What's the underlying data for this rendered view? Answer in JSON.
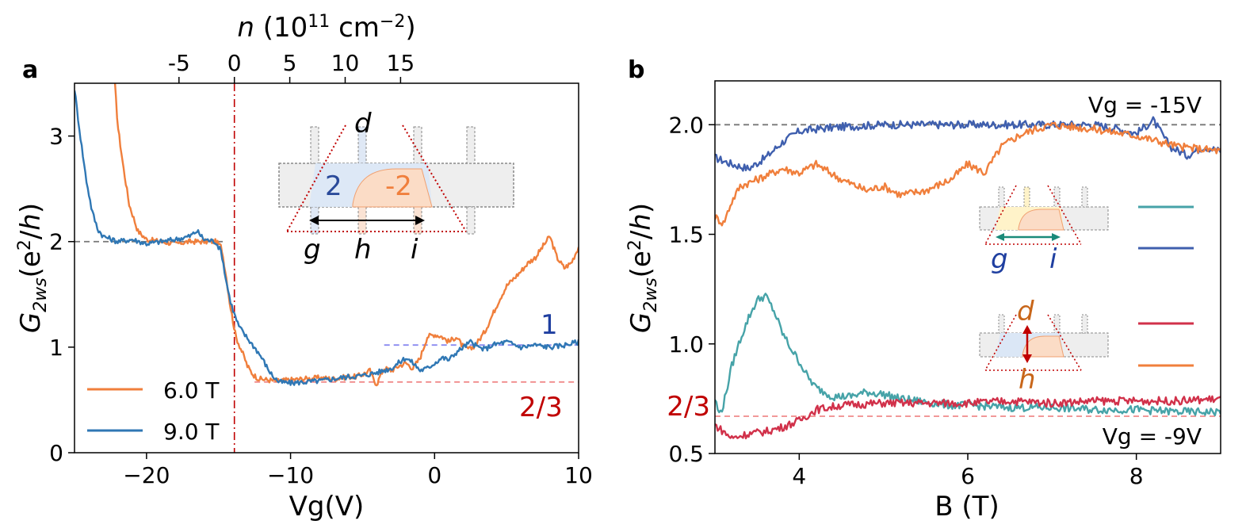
{
  "chart_data": [
    {
      "panel": "a",
      "type": "line",
      "xlabel": "Vg(V)",
      "ylabel": "G_2ws(e^2/h)",
      "top_xlabel": "n (10^11 cm^-2)",
      "xlim": [
        -25,
        10
      ],
      "ylim": [
        0,
        3.5
      ],
      "xticks": [
        -20,
        -10,
        0,
        10
      ],
      "xtick_labels": [
        "−20",
        "−10",
        "0",
        "10"
      ],
      "yticks": [
        0,
        1,
        2,
        3
      ],
      "ytick_labels": [
        "0",
        "1",
        "2",
        "3"
      ],
      "top_ticks_n": [
        -5,
        0,
        5,
        10,
        15
      ],
      "top_tick_labels": [
        "-5",
        "0",
        "5",
        "10",
        "15"
      ],
      "n_per_V": 1.3,
      "n_offset_V": -13.9,
      "legend": {
        "placement": "lower-left",
        "entries": [
          "6.0 T",
          "9.0 T"
        ]
      },
      "annotations": {
        "level_1": "1",
        "level_23": "2/3",
        "region_left": "2",
        "region_right": "-2",
        "contacts": [
          "d",
          "g",
          "h",
          "i"
        ]
      },
      "reference_lines": [
        {
          "y": 2.0,
          "from_x": -25,
          "to_x": -14.5,
          "color": "#777777"
        },
        {
          "y": 1.02,
          "from_x": -3.5,
          "to_x": 10,
          "color": "#8a8af0"
        },
        {
          "y": 0.67,
          "from_x": -12.5,
          "to_x": 10,
          "color": "#f08a8a"
        }
      ],
      "vertical_line": {
        "x": -13.9,
        "color": "#c00000"
      },
      "series": [
        {
          "name": "6.0 T",
          "color": "#f07f3c",
          "points": [
            [
              -22.2,
              3.5
            ],
            [
              -22,
              3.1
            ],
            [
              -21.6,
              2.7
            ],
            [
              -21.2,
              2.35
            ],
            [
              -20.6,
              2.1
            ],
            [
              -20,
              2.02
            ],
            [
              -19,
              2.0
            ],
            [
              -18,
              1.98
            ],
            [
              -17,
              2.0
            ],
            [
              -16,
              2.0
            ],
            [
              -15.2,
              2.0
            ],
            [
              -14.8,
              1.95
            ],
            [
              -14.5,
              1.7
            ],
            [
              -14.2,
              1.4
            ],
            [
              -14,
              1.25
            ],
            [
              -13.8,
              1.1
            ],
            [
              -13.5,
              1.0
            ],
            [
              -13.2,
              0.9
            ],
            [
              -13,
              0.82
            ],
            [
              -12.6,
              0.74
            ],
            [
              -12.2,
              0.7
            ],
            [
              -11.6,
              0.69
            ],
            [
              -11,
              0.68
            ],
            [
              -10,
              0.69
            ],
            [
              -9,
              0.7
            ],
            [
              -8,
              0.71
            ],
            [
              -7,
              0.7
            ],
            [
              -6,
              0.72
            ],
            [
              -5.5,
              0.72
            ],
            [
              -5,
              0.74
            ],
            [
              -4.5,
              0.78
            ],
            [
              -4.2,
              0.68
            ],
            [
              -4,
              0.65
            ],
            [
              -3.8,
              0.72
            ],
            [
              -3.5,
              0.8
            ],
            [
              -3,
              0.78
            ],
            [
              -2.5,
              0.82
            ],
            [
              -2,
              0.85
            ],
            [
              -1.5,
              0.8
            ],
            [
              -1,
              0.9
            ],
            [
              -0.5,
              1.1
            ],
            [
              0,
              1.12
            ],
            [
              0.5,
              1.1
            ],
            [
              1,
              1.05
            ],
            [
              1.5,
              1.1
            ],
            [
              2,
              1.0
            ],
            [
              2.5,
              0.98
            ],
            [
              3,
              1.05
            ],
            [
              3.5,
              1.15
            ],
            [
              4,
              1.3
            ],
            [
              4.5,
              1.45
            ],
            [
              5,
              1.58
            ],
            [
              5.5,
              1.65
            ],
            [
              6,
              1.72
            ],
            [
              6.5,
              1.8
            ],
            [
              7,
              1.85
            ],
            [
              7.5,
              1.95
            ],
            [
              8,
              2.05
            ],
            [
              8.5,
              1.85
            ],
            [
              9,
              1.75
            ],
            [
              9.5,
              1.8
            ],
            [
              10,
              1.95
            ]
          ]
        },
        {
          "name": "9.0 T",
          "color": "#2f77b4",
          "points": [
            [
              -25,
              3.45
            ],
            [
              -24.6,
              3.0
            ],
            [
              -24.2,
              2.6
            ],
            [
              -23.8,
              2.3
            ],
            [
              -23.4,
              2.12
            ],
            [
              -23,
              2.05
            ],
            [
              -22,
              2.0
            ],
            [
              -21,
              2.02
            ],
            [
              -20,
              1.98
            ],
            [
              -19,
              2.0
            ],
            [
              -18,
              2.02
            ],
            [
              -17,
              2.05
            ],
            [
              -16.5,
              2.1
            ],
            [
              -16,
              2.02
            ],
            [
              -15.2,
              2.0
            ],
            [
              -14.8,
              1.9
            ],
            [
              -14.5,
              1.65
            ],
            [
              -14.2,
              1.45
            ],
            [
              -14,
              1.35
            ],
            [
              -13.6,
              1.2
            ],
            [
              -13.2,
              1.12
            ],
            [
              -12.8,
              1.05
            ],
            [
              -12.4,
              0.98
            ],
            [
              -12,
              0.9
            ],
            [
              -11.6,
              0.8
            ],
            [
              -11.2,
              0.72
            ],
            [
              -10.8,
              0.67
            ],
            [
              -10,
              0.66
            ],
            [
              -9,
              0.67
            ],
            [
              -8,
              0.68
            ],
            [
              -7,
              0.7
            ],
            [
              -6,
              0.72
            ],
            [
              -5,
              0.73
            ],
            [
              -4,
              0.76
            ],
            [
              -3,
              0.8
            ],
            [
              -2.5,
              0.85
            ],
            [
              -2,
              0.9
            ],
            [
              -1.5,
              0.85
            ],
            [
              -1,
              0.78
            ],
            [
              -0.5,
              0.8
            ],
            [
              0,
              0.85
            ],
            [
              0.5,
              0.9
            ],
            [
              1,
              0.88
            ],
            [
              1.5,
              0.95
            ],
            [
              2,
              1.0
            ],
            [
              2.5,
              1.05
            ],
            [
              3,
              1.0
            ],
            [
              3.5,
              0.98
            ],
            [
              4,
              1.02
            ],
            [
              5,
              1.05
            ],
            [
              6,
              1.0
            ],
            [
              7,
              1.02
            ],
            [
              8,
              1.0
            ],
            [
              9,
              1.02
            ],
            [
              10,
              1.05
            ]
          ]
        }
      ]
    },
    {
      "panel": "b",
      "type": "line",
      "xlabel": "B (T)",
      "ylabel": "G_2ws(e^2/h)",
      "xlim": [
        3,
        9
      ],
      "ylim": [
        0.5,
        2.2
      ],
      "xticks": [
        4,
        6,
        8
      ],
      "xtick_labels": [
        "4",
        "6",
        "8"
      ],
      "yticks": [
        0.5,
        1.0,
        1.5,
        2.0
      ],
      "ytick_labels": [
        "0.5",
        "1.0",
        "1.5",
        "2.0"
      ],
      "annotations": {
        "vg_top": "Vg = -15V",
        "vg_bottom": "Vg = -9V",
        "level_23": "2/3",
        "contacts_top": [
          "g",
          "i"
        ],
        "contacts_bottom": [
          "d",
          "h"
        ]
      },
      "reference_lines": [
        {
          "y": 2.0,
          "color": "#777777"
        },
        {
          "y": 0.67,
          "color": "#f08a8a"
        }
      ],
      "series": [
        {
          "color": "#3f5fae",
          "points": [
            [
              3,
              1.85
            ],
            [
              3.2,
              1.82
            ],
            [
              3.4,
              1.8
            ],
            [
              3.6,
              1.85
            ],
            [
              3.8,
              1.92
            ],
            [
              4,
              1.97
            ],
            [
              4.2,
              1.98
            ],
            [
              4.5,
              1.99
            ],
            [
              5,
              2.0
            ],
            [
              5.5,
              2.0
            ],
            [
              6,
              2.0
            ],
            [
              6.5,
              2.0
            ],
            [
              7,
              2.0
            ],
            [
              7.5,
              2.0
            ],
            [
              7.8,
              1.98
            ],
            [
              8,
              1.96
            ],
            [
              8.2,
              2.02
            ],
            [
              8.4,
              1.9
            ],
            [
              8.6,
              1.86
            ],
            [
              8.8,
              1.9
            ],
            [
              9,
              1.88
            ]
          ]
        },
        {
          "color": "#f07f3c",
          "points": [
            [
              3,
              1.58
            ],
            [
              3.1,
              1.55
            ],
            [
              3.2,
              1.65
            ],
            [
              3.3,
              1.72
            ],
            [
              3.5,
              1.75
            ],
            [
              3.8,
              1.8
            ],
            [
              4,
              1.78
            ],
            [
              4.2,
              1.82
            ],
            [
              4.5,
              1.75
            ],
            [
              4.8,
              1.7
            ],
            [
              5,
              1.72
            ],
            [
              5.2,
              1.68
            ],
            [
              5.5,
              1.7
            ],
            [
              5.8,
              1.75
            ],
            [
              6,
              1.82
            ],
            [
              6.2,
              1.78
            ],
            [
              6.4,
              1.9
            ],
            [
              6.6,
              1.95
            ],
            [
              6.8,
              1.98
            ],
            [
              7,
              2.0
            ],
            [
              7.5,
              1.98
            ],
            [
              8,
              1.95
            ],
            [
              8.5,
              1.9
            ],
            [
              9,
              1.88
            ]
          ]
        },
        {
          "color": "#46a3a8",
          "points": [
            [
              3,
              0.75
            ],
            [
              3.05,
              0.68
            ],
            [
              3.1,
              0.72
            ],
            [
              3.2,
              0.9
            ],
            [
              3.3,
              1.02
            ],
            [
              3.4,
              1.12
            ],
            [
              3.5,
              1.2
            ],
            [
              3.6,
              1.22
            ],
            [
              3.7,
              1.15
            ],
            [
              3.8,
              1.05
            ],
            [
              3.9,
              0.98
            ],
            [
              4,
              0.92
            ],
            [
              4.1,
              0.85
            ],
            [
              4.2,
              0.8
            ],
            [
              4.4,
              0.76
            ],
            [
              4.6,
              0.76
            ],
            [
              4.8,
              0.78
            ],
            [
              5,
              0.77
            ],
            [
              5.2,
              0.75
            ],
            [
              5.4,
              0.74
            ],
            [
              5.6,
              0.73
            ],
            [
              5.8,
              0.72
            ],
            [
              6,
              0.72
            ],
            [
              6.5,
              0.71
            ],
            [
              7,
              0.71
            ],
            [
              7.5,
              0.7
            ],
            [
              8,
              0.7
            ],
            [
              8.5,
              0.69
            ],
            [
              9,
              0.69
            ]
          ]
        },
        {
          "color": "#d1314a",
          "points": [
            [
              3,
              0.63
            ],
            [
              3.2,
              0.57
            ],
            [
              3.4,
              0.59
            ],
            [
              3.6,
              0.6
            ],
            [
              3.8,
              0.62
            ],
            [
              4,
              0.65
            ],
            [
              4.2,
              0.7
            ],
            [
              4.5,
              0.72
            ],
            [
              5,
              0.73
            ],
            [
              5.5,
              0.73
            ],
            [
              6,
              0.73
            ],
            [
              6.5,
              0.74
            ],
            [
              7,
              0.73
            ],
            [
              7.5,
              0.74
            ],
            [
              8,
              0.74
            ],
            [
              8.5,
              0.74
            ],
            [
              9,
              0.75
            ]
          ]
        }
      ]
    }
  ]
}
